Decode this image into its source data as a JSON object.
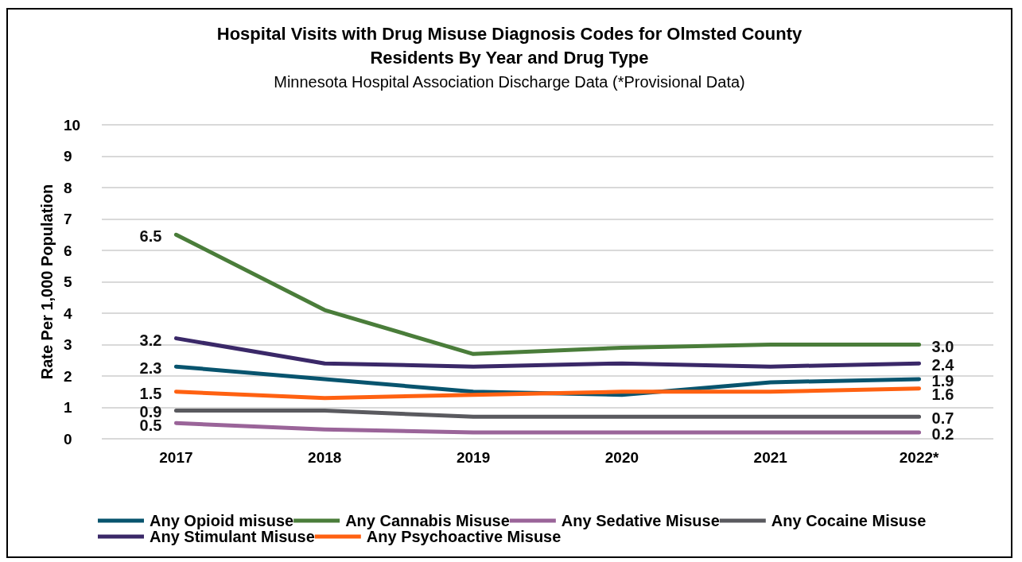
{
  "chart_data": {
    "type": "line",
    "title": "Hospital Visits with Drug Misuse Diagnosis Codes for Olmsted County\nResidents By Year and Drug Type",
    "subtitle": "Minnesota Hospital Association Discharge Data (*Provisional Data)",
    "ylabel": "Rate Per 1,000 Population",
    "categories": [
      "2017",
      "2018",
      "2019",
      "2020",
      "2021",
      "2022*"
    ],
    "ylim": [
      0,
      10
    ],
    "yticks": [
      0,
      1,
      2,
      3,
      4,
      5,
      6,
      7,
      8,
      9,
      10
    ],
    "grid": "y",
    "legend": "bottom",
    "marker": "none",
    "line_style": "solid",
    "series": [
      {
        "name": "Any Opioid misuse",
        "color": "#08546e",
        "values": [
          2.3,
          1.9,
          1.5,
          1.4,
          1.8,
          1.9
        ],
        "value_labels": [
          "2.3",
          null,
          null,
          null,
          null,
          "1.9"
        ]
      },
      {
        "name": "Any Cannabis Misuse",
        "color": "#4a7d3a",
        "values": [
          6.5,
          4.1,
          2.7,
          2.9,
          3.0,
          3.0
        ],
        "value_labels": [
          "6.5",
          null,
          null,
          null,
          null,
          "3.0"
        ]
      },
      {
        "name": "Any Sedative Misuse",
        "color": "#9a6499",
        "values": [
          0.5,
          0.3,
          0.2,
          0.2,
          0.2,
          0.2
        ],
        "value_labels": [
          "0.5",
          null,
          null,
          null,
          null,
          "0.2"
        ]
      },
      {
        "name": "Any Cocaine Misuse",
        "color": "#5a5a5f",
        "values": [
          0.9,
          0.9,
          0.7,
          0.7,
          0.7,
          0.7
        ],
        "value_labels": [
          "0.9",
          null,
          null,
          null,
          null,
          "0.7"
        ]
      },
      {
        "name": "Any Stimulant Misuse",
        "color": "#3a2868",
        "values": [
          3.2,
          2.4,
          2.3,
          2.4,
          2.3,
          2.4
        ],
        "value_labels": [
          "3.2",
          null,
          null,
          null,
          null,
          "2.4"
        ]
      },
      {
        "name": "Any Psychoactive Misuse",
        "color": "#ff6111",
        "values": [
          1.5,
          1.3,
          1.4,
          1.5,
          1.5,
          1.6
        ],
        "value_labels": [
          "1.5",
          null,
          null,
          null,
          null,
          "1.6"
        ]
      }
    ]
  }
}
